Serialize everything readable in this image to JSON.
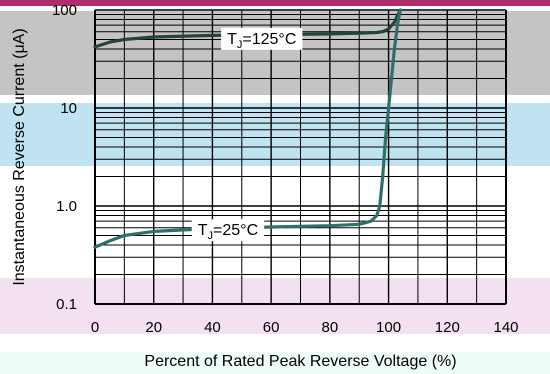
{
  "chart_data": {
    "type": "line",
    "title": "",
    "xlabel": "Percent of Rated Peak Reverse Voltage (%)",
    "ylabel": "Instantaneous Reverse Current (μA)",
    "x_ticks": [
      "0",
      "20",
      "40",
      "60",
      "80",
      "100",
      "120",
      "140"
    ],
    "y_ticks": [
      "0.1",
      "1.0",
      "10",
      "100"
    ],
    "xlim": [
      0,
      140
    ],
    "ylim": [
      0.1,
      100
    ],
    "y_scale": "log",
    "grid": true,
    "series": [
      {
        "name": "TJ=125°C",
        "label_main": "T",
        "label_sub": "J",
        "label_rest": "=125°C",
        "color": "#23433f",
        "x": [
          0,
          5,
          10,
          20,
          40,
          60,
          80,
          90,
          96,
          98,
          100,
          102,
          104
        ],
        "y": [
          42,
          47,
          50,
          53,
          55,
          56,
          57,
          58,
          59,
          60,
          64,
          75,
          100
        ]
      },
      {
        "name": "TJ=25°C",
        "label_main": "T",
        "label_sub": "J",
        "label_rest": "=25°C",
        "color": "#2f6f69",
        "x": [
          0,
          5,
          10,
          20,
          40,
          60,
          80,
          90,
          94,
          96,
          97,
          98,
          99,
          100,
          101,
          102,
          103,
          104
        ],
        "y": [
          0.38,
          0.44,
          0.5,
          0.55,
          0.59,
          0.61,
          0.63,
          0.65,
          0.7,
          0.8,
          1.0,
          2.0,
          5.0,
          10,
          20,
          40,
          70,
          100
        ]
      }
    ]
  }
}
